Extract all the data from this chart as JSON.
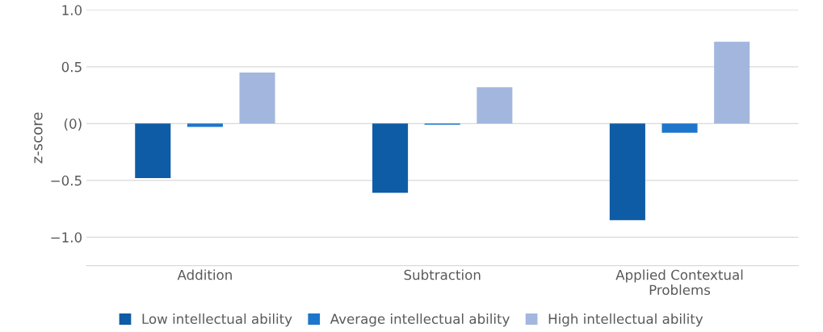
{
  "chart_data": {
    "type": "bar",
    "ylabel": "z-score",
    "categories": [
      "Addition",
      "Subtraction",
      "Applied Contextual\nProblems"
    ],
    "series": [
      {
        "name": "Low intellectual ability",
        "color": "#0f5ca6",
        "values": [
          -0.48,
          -0.61,
          -0.85
        ]
      },
      {
        "name": "Average intellectual ability",
        "color": "#1e76cc",
        "values": [
          -0.03,
          -0.01,
          -0.08
        ]
      },
      {
        "name": "High intellectual ability",
        "color": "#a3b7de",
        "values": [
          0.45,
          0.32,
          0.72
        ]
      }
    ],
    "ylim": [
      -1.25,
      1.0
    ],
    "yticks": [
      {
        "value": 1.0,
        "label": "1.0"
      },
      0.5,
      {
        "value": 0,
        "label": "(0)"
      },
      {
        "value": -0.5,
        "label": "−0.5"
      },
      {
        "value": -1.0,
        "label": "−1.0"
      }
    ],
    "grid": "y",
    "legend": "bottom"
  }
}
